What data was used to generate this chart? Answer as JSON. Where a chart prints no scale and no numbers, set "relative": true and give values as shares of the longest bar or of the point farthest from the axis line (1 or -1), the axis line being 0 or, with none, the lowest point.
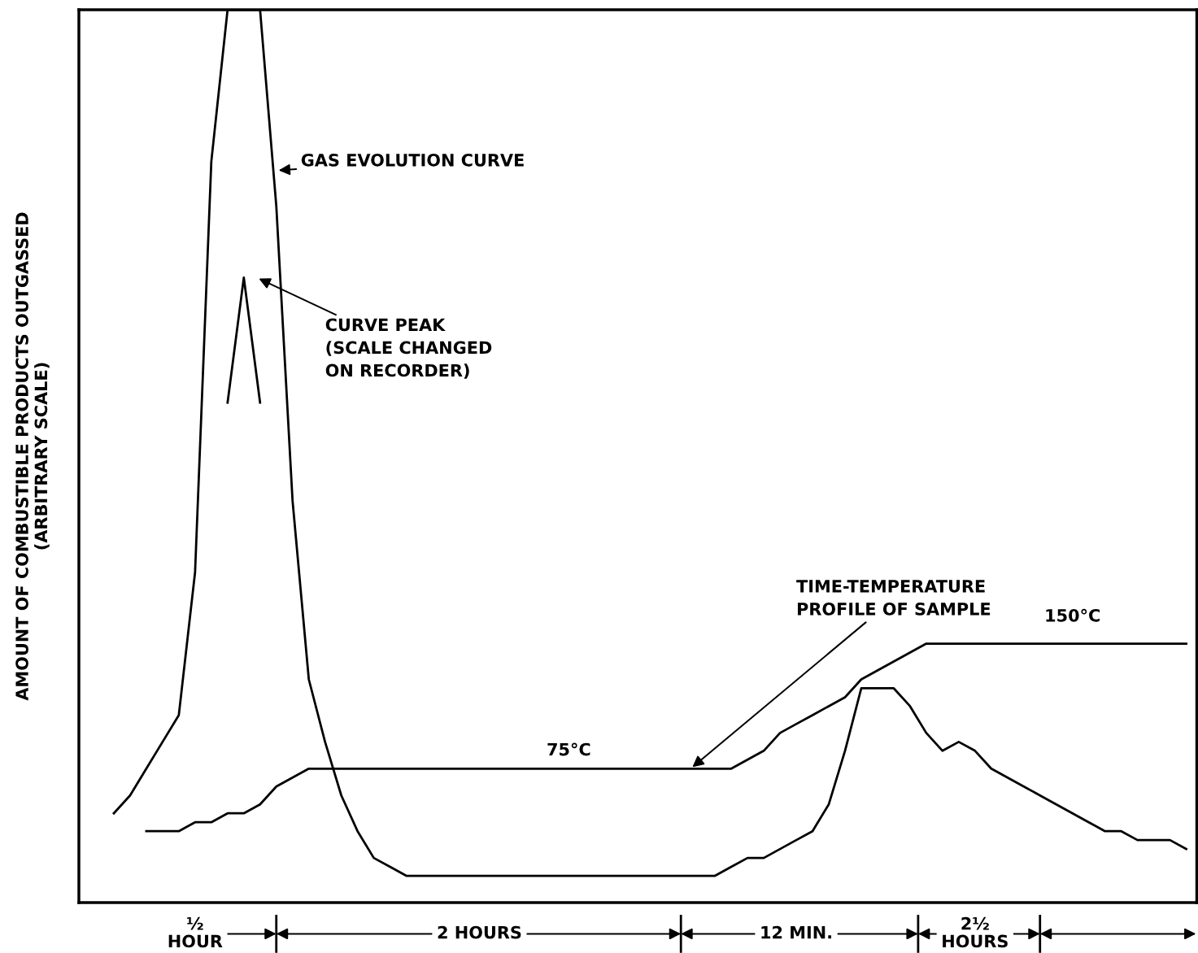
{
  "chart_data": {
    "type": "line",
    "relative": true,
    "ylabel": "AMOUNT OF COMBUSTIBLE PRODUCTS OUTGASSED\n(ARBITRARY SCALE)",
    "categories": [
      null,
      null,
      null,
      null,
      null,
      null,
      null,
      null,
      null,
      null,
      null,
      null,
      null,
      null,
      null,
      null,
      null,
      null,
      null,
      null,
      null,
      null,
      null,
      null,
      null,
      null,
      null,
      null,
      null,
      null,
      null,
      null,
      null,
      null,
      null,
      null,
      null,
      null,
      null,
      null,
      null,
      null,
      null,
      null,
      null,
      null,
      null,
      null,
      null,
      null,
      null,
      null,
      null,
      null,
      null,
      null,
      null,
      null,
      null,
      null,
      null,
      null,
      null,
      null,
      null,
      null,
      null,
      null,
      null
    ],
    "series": [
      {
        "name": "GAS EVOLUTION CURVE",
        "color": "#000000",
        "values": [
          null,
          null,
          0.1,
          0.12,
          0.15,
          0.18,
          0.21,
          0.37,
          0.83,
          1.0,
          1.0,
          1.0,
          0.78,
          0.45,
          0.25,
          0.18,
          0.12,
          0.08,
          0.05,
          0.04,
          0.03,
          0.03,
          0.03,
          0.03,
          0.03,
          0.03,
          0.03,
          0.03,
          0.03,
          0.03,
          0.03,
          0.03,
          0.03,
          0.03,
          0.03,
          0.03,
          0.03,
          0.03,
          0.03,
          0.03,
          0.04,
          0.05,
          0.05,
          0.06,
          0.07,
          0.08,
          0.11,
          0.17,
          0.24,
          0.24,
          0.24,
          0.22,
          0.19,
          0.17,
          0.18,
          0.17,
          0.15,
          0.14,
          0.13,
          0.12,
          0.11,
          0.1,
          0.09,
          0.08,
          0.08,
          0.07,
          0.07,
          0.07,
          0.06
        ]
      },
      {
        "name": "CURVE PEAK\n(SCALE CHANGED\nON RECORDER)",
        "color": "#000000",
        "values": [
          null,
          null,
          null,
          null,
          null,
          null,
          null,
          null,
          null,
          0.56,
          0.7,
          0.56,
          null,
          null,
          null,
          null,
          null,
          null,
          null,
          null,
          null,
          null,
          null,
          null,
          null,
          null,
          null,
          null,
          null,
          null,
          null,
          null,
          null,
          null,
          null,
          null,
          null,
          null,
          null,
          null,
          null,
          null,
          null,
          null,
          null,
          null,
          null,
          null,
          null,
          null,
          null,
          null,
          null,
          null,
          null,
          null,
          null,
          null,
          null,
          null,
          null,
          null,
          null,
          null,
          null,
          null,
          null,
          null,
          null
        ]
      },
      {
        "name": "TIME-TEMPERATURE\nPROFILE OF SAMPLE",
        "color": "#000000",
        "values": [
          null,
          null,
          null,
          null,
          0.08,
          0.08,
          0.08,
          0.09,
          0.09,
          0.1,
          0.1,
          0.11,
          0.13,
          0.14,
          0.15,
          0.15,
          0.15,
          0.15,
          0.15,
          0.15,
          0.15,
          0.15,
          0.15,
          0.15,
          0.15,
          0.15,
          0.15,
          0.15,
          0.15,
          0.15,
          0.15,
          0.15,
          0.15,
          0.15,
          0.15,
          0.15,
          0.15,
          0.15,
          0.15,
          0.15,
          0.15,
          0.16,
          0.17,
          0.19,
          0.2,
          0.21,
          0.22,
          0.23,
          0.25,
          0.26,
          0.27,
          0.28,
          0.29,
          0.29,
          0.29,
          0.29,
          0.29,
          0.29,
          0.29,
          0.29,
          0.29,
          0.29,
          0.29,
          0.29,
          0.29,
          0.29,
          0.29,
          0.29,
          0.29
        ]
      }
    ],
    "annotations": [
      "75°C",
      "150°C",
      "½\nHOUR",
      "2 HOURS",
      "12 MIN.",
      "2½\nHOURS"
    ]
  }
}
